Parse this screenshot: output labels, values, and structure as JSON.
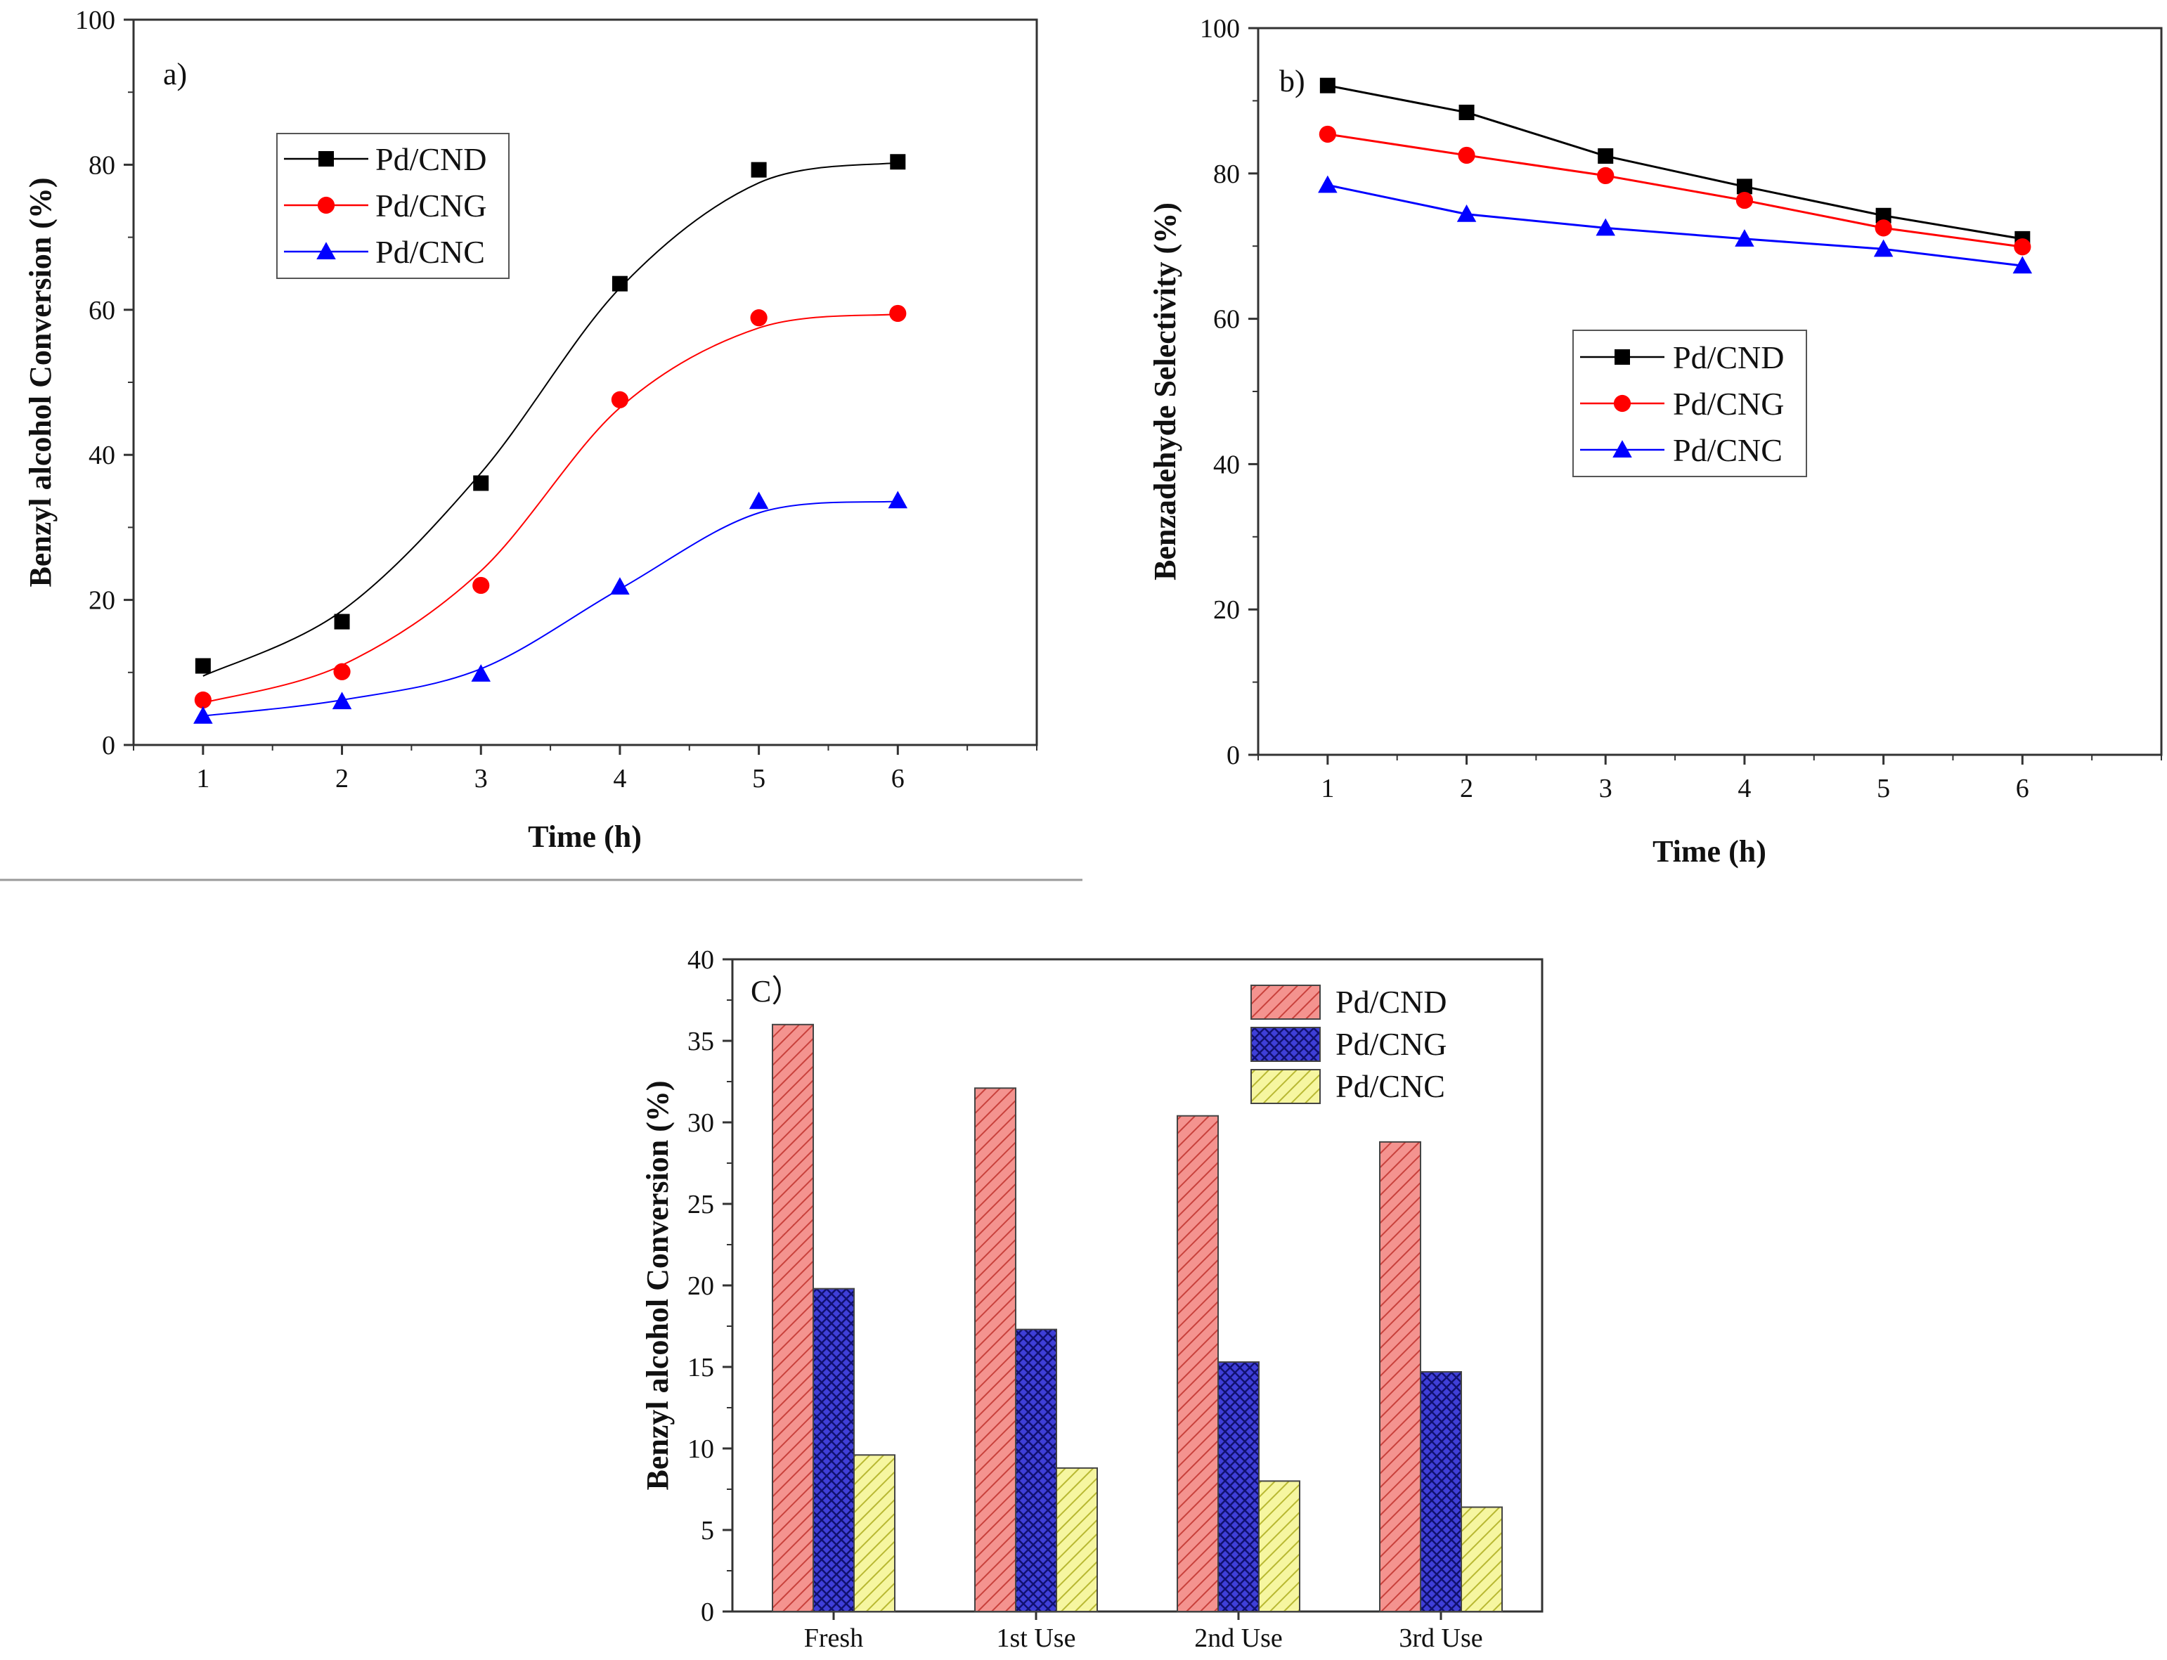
{
  "chart_data": [
    {
      "type": "line",
      "panel_label": "a)",
      "title": "",
      "xlabel": "Time (h)",
      "ylabel": "Benzyl alcohol Conversion (%)",
      "x": [
        1,
        2,
        3,
        4,
        5,
        6
      ],
      "xlim": [
        0.5,
        7.0
      ],
      "ylim": [
        0,
        100
      ],
      "xticks": [
        1,
        2,
        3,
        4,
        5,
        6
      ],
      "yticks": [
        0,
        20,
        40,
        60,
        80,
        100
      ],
      "legend_position": "top-left",
      "series": [
        {
          "name": "Pd/CND",
          "values": [
            10.9,
            17.0,
            36.1,
            63.6,
            79.3,
            80.4
          ],
          "color": "#000000",
          "marker": "square"
        },
        {
          "name": "Pd/CNG",
          "values": [
            6.2,
            10.1,
            22.0,
            47.6,
            58.9,
            59.5
          ],
          "color": "#ff0000",
          "marker": "circle"
        },
        {
          "name": "Pd/CNC",
          "values": [
            4.0,
            6.0,
            9.8,
            21.8,
            33.6,
            33.7
          ],
          "color": "#0000ff",
          "marker": "triangle"
        }
      ],
      "fit_curves": {
        "Pd/CND": [
          9.5,
          18.5,
          37.5,
          63.0,
          77.5,
          80.3
        ],
        "Pd/CNG": [
          5.8,
          11.0,
          24.0,
          46.5,
          57.5,
          59.4
        ],
        "Pd/CNC": [
          4.0,
          6.2,
          10.5,
          21.5,
          32.0,
          33.6
        ]
      }
    },
    {
      "type": "line",
      "panel_label": "b)",
      "title": "",
      "xlabel": "Time (h)",
      "ylabel": "Benzadehyde Selectivity (%)",
      "x": [
        1,
        2,
        3,
        4,
        5,
        6
      ],
      "xlim": [
        0.5,
        7.0
      ],
      "ylim": [
        0,
        100
      ],
      "xticks": [
        1,
        2,
        3,
        4,
        5,
        6
      ],
      "yticks": [
        0,
        20,
        40,
        60,
        80,
        100
      ],
      "legend_position": "center",
      "series": [
        {
          "name": "Pd/CND",
          "values": [
            92.1,
            88.4,
            82.4,
            78.2,
            74.2,
            71.0
          ],
          "color": "#000000",
          "marker": "square"
        },
        {
          "name": "Pd/CNG",
          "values": [
            85.4,
            82.5,
            79.7,
            76.3,
            72.5,
            69.9
          ],
          "color": "#ff0000",
          "marker": "circle"
        },
        {
          "name": "Pd/CNC",
          "values": [
            78.4,
            74.4,
            72.5,
            71.0,
            69.6,
            67.3
          ],
          "color": "#0000ff",
          "marker": "triangle"
        }
      ]
    },
    {
      "type": "bar",
      "panel_label": "C）",
      "title": "",
      "xlabel": "",
      "ylabel": "Benzyl alcohol Conversion (%)",
      "categories": [
        "Fresh",
        "1st Use",
        "2nd Use",
        "3rd Use"
      ],
      "ylim": [
        0,
        40
      ],
      "yticks": [
        0,
        5,
        10,
        15,
        20,
        25,
        30,
        35,
        40
      ],
      "legend_position": "top-right",
      "series": [
        {
          "name": "Pd/CND",
          "values": [
            36.0,
            32.1,
            30.4,
            28.8
          ],
          "color": "#f08080",
          "pattern": "diagonal-hatch"
        },
        {
          "name": "Pd/CNG",
          "values": [
            19.8,
            17.3,
            15.3,
            14.7
          ],
          "color": "#3b3bd6",
          "pattern": "cross-hatch"
        },
        {
          "name": "Pd/CNC",
          "values": [
            9.6,
            8.8,
            8.0,
            6.4
          ],
          "color": "#f0f07a",
          "pattern": "diagonal-hatch"
        }
      ]
    }
  ]
}
